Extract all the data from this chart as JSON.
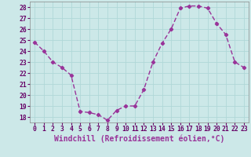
{
  "x": [
    0,
    1,
    2,
    3,
    4,
    5,
    6,
    7,
    8,
    9,
    10,
    11,
    12,
    13,
    14,
    15,
    16,
    17,
    18,
    19,
    20,
    21,
    22,
    23
  ],
  "y": [
    24.8,
    24.0,
    23.0,
    22.5,
    21.8,
    18.5,
    18.4,
    18.2,
    17.7,
    18.6,
    19.0,
    19.0,
    20.5,
    23.0,
    24.7,
    26.0,
    27.9,
    28.1,
    28.1,
    27.9,
    26.5,
    25.5,
    23.0,
    22.5
  ],
  "line_color": "#993399",
  "marker": "D",
  "marker_size": 2.2,
  "xlabel": "Windchill (Refroidissement éolien,°C)",
  "xlim": [
    -0.5,
    23.5
  ],
  "ylim": [
    17.5,
    28.5
  ],
  "yticks": [
    18,
    19,
    20,
    21,
    22,
    23,
    24,
    25,
    26,
    27,
    28
  ],
  "xticks": [
    0,
    1,
    2,
    3,
    4,
    5,
    6,
    7,
    8,
    9,
    10,
    11,
    12,
    13,
    14,
    15,
    16,
    17,
    18,
    19,
    20,
    21,
    22,
    23
  ],
  "bg_color": "#cce8e8",
  "grid_color": "#b0d8d8",
  "tick_label_fontsize": 5.8,
  "xlabel_fontsize": 7.0,
  "line_width": 1.0
}
